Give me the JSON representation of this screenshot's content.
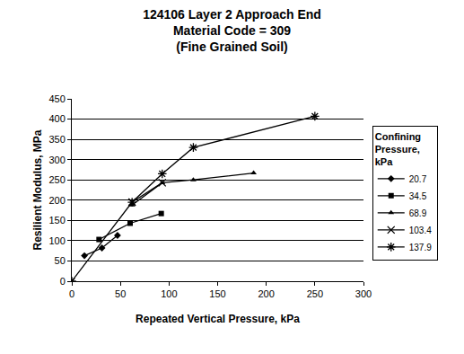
{
  "chart_data": {
    "type": "line",
    "title": "124106 Layer 2 Approach End\nMaterial Code = 309\n(Fine Grained Soil)",
    "x_label": "Repeated Vertical Pressure, kPa",
    "y_label": "Resilient Modulus, MPa",
    "legend_title": "Confining Pressure, kPa",
    "legend": "right",
    "grid": "y",
    "xlim": [
      0,
      300
    ],
    "xticks": [
      0,
      50,
      100,
      150,
      200,
      250,
      300
    ],
    "ylim": [
      0,
      450
    ],
    "yticks": [
      0,
      50,
      100,
      150,
      200,
      250,
      300,
      350,
      400,
      450
    ],
    "series": [
      {
        "name": "20.7",
        "color": "#000000",
        "marker": "diamond",
        "x": [
          13,
          31,
          47
        ],
        "values": [
          63,
          82,
          113
        ]
      },
      {
        "name": "34.5",
        "color": "#000000",
        "marker": "square",
        "x": [
          28,
          60,
          92
        ],
        "values": [
          103,
          143,
          167
        ]
      },
      {
        "name": "68.9",
        "color": "#000000",
        "marker": "triangle-up",
        "x": [
          62,
          93,
          125,
          187
        ],
        "values": [
          188,
          243,
          250,
          267
        ]
      },
      {
        "name": "103.4",
        "color": "#000000",
        "marker": "x",
        "x": [
          62,
          93
        ],
        "values": [
          195,
          243
        ]
      },
      {
        "name": "137.9",
        "color": "#000000",
        "marker": "asterisk",
        "x": [
          0,
          62,
          93,
          125,
          250
        ],
        "values": [
          0,
          195,
          265,
          330,
          407
        ]
      }
    ]
  }
}
